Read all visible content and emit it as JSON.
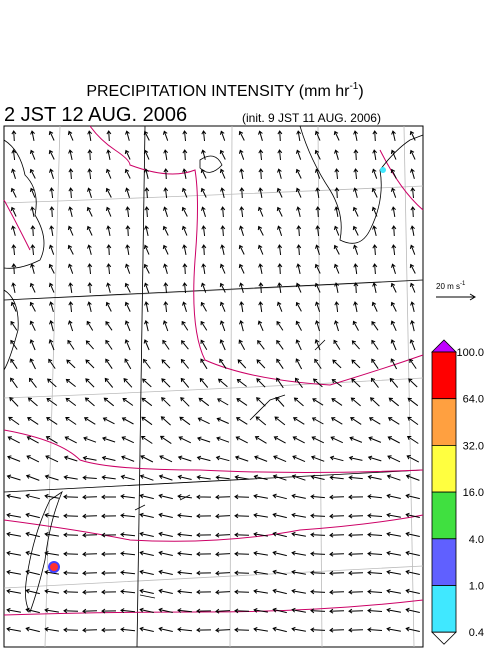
{
  "header": {
    "title": "PRECIPITATION INTENSITY (mm hr",
    "title_sup": "-1",
    "title_end": ")",
    "valid_time": "2 JST 12 AUG. 2006",
    "init_time": "(init. 9 JST 11 AUG. 2006)"
  },
  "wind_legend": {
    "label": "20 m s",
    "label_sup": "-1"
  },
  "colorbar": {
    "labels": [
      "100.0",
      "64.0",
      "32.0",
      "16.0",
      "4.0",
      "1.0",
      "0.4"
    ],
    "over_color": "#c000ff",
    "under_color": "#ffffff",
    "colors": [
      "#ff0000",
      "#ffa040",
      "#ffff40",
      "#40e040",
      "#6060ff",
      "#40e8ff"
    ]
  }
}
